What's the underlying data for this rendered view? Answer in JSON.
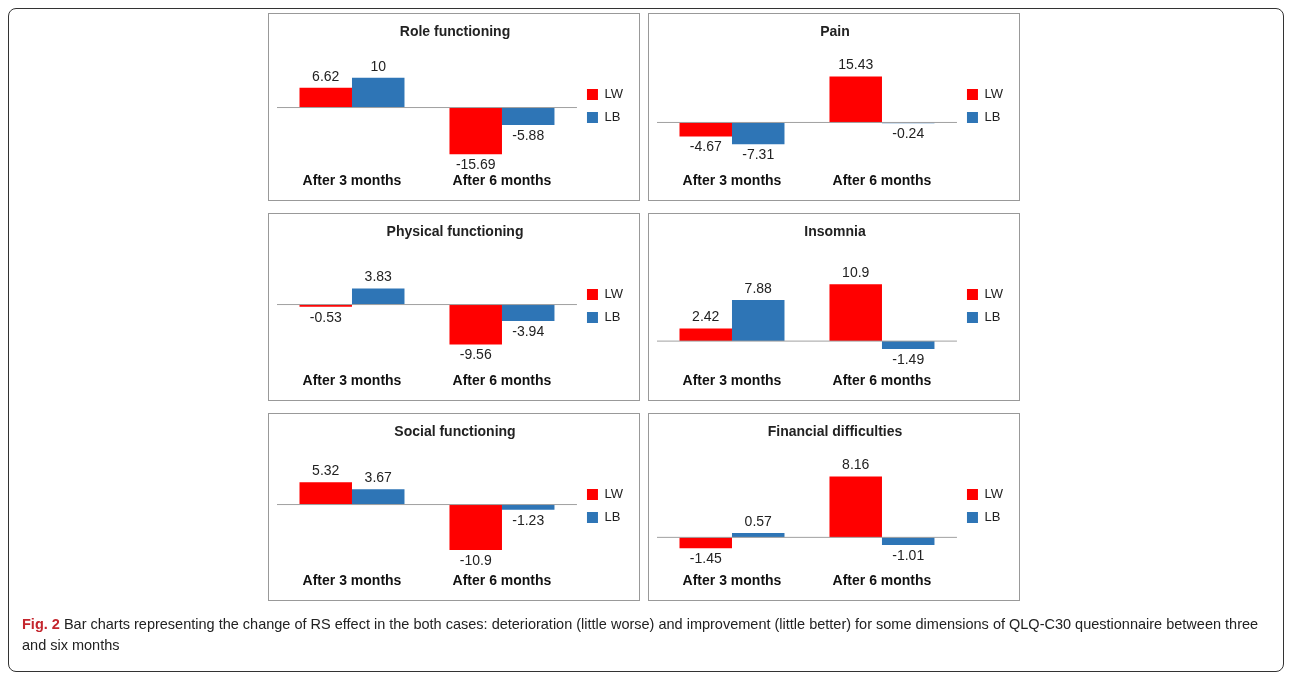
{
  "chart_data": [
    {
      "type": "bar",
      "title": "Role functioning",
      "categories": [
        "After 3 months",
        "After 6 months"
      ],
      "series": [
        {
          "name": "LW",
          "color": "#ff0000",
          "values": [
            6.62,
            -15.69
          ]
        },
        {
          "name": "LB",
          "color": "#2e75b6",
          "values": [
            10,
            -5.88
          ]
        }
      ],
      "data_labels": true,
      "legend": "right",
      "grid": false
    },
    {
      "type": "bar",
      "title": "Pain",
      "categories": [
        "After 3 months",
        "After 6 months"
      ],
      "series": [
        {
          "name": "LW",
          "color": "#ff0000",
          "values": [
            -4.67,
            15.43
          ]
        },
        {
          "name": "LB",
          "color": "#2e75b6",
          "values": [
            -7.31,
            -0.24
          ]
        }
      ],
      "data_labels": true,
      "legend": "right",
      "grid": false
    },
    {
      "type": "bar",
      "title": "Physical functioning",
      "categories": [
        "After 3 months",
        "After 6 months"
      ],
      "series": [
        {
          "name": "LW",
          "color": "#ff0000",
          "values": [
            -0.53,
            -9.56
          ]
        },
        {
          "name": "LB",
          "color": "#2e75b6",
          "values": [
            3.83,
            -3.94
          ]
        }
      ],
      "data_labels": true,
      "legend": "right",
      "grid": false
    },
    {
      "type": "bar",
      "title": "Insomnia",
      "categories": [
        "After 3 months",
        "After 6 months"
      ],
      "series": [
        {
          "name": "LW",
          "color": "#ff0000",
          "values": [
            2.42,
            10.9
          ]
        },
        {
          "name": "LB",
          "color": "#2e75b6",
          "values": [
            7.88,
            -1.49
          ]
        }
      ],
      "data_labels": true,
      "legend": "right",
      "grid": false
    },
    {
      "type": "bar",
      "title": "Social functioning",
      "categories": [
        "After 3 months",
        "After 6 months"
      ],
      "series": [
        {
          "name": "LW",
          "color": "#ff0000",
          "values": [
            5.32,
            -10.9
          ]
        },
        {
          "name": "LB",
          "color": "#2e75b6",
          "values": [
            3.67,
            -1.23
          ]
        }
      ],
      "data_labels": true,
      "legend": "right",
      "grid": false
    },
    {
      "type": "bar",
      "title": "Financial difficulties",
      "categories": [
        "After 3 months",
        "After 6 months"
      ],
      "series": [
        {
          "name": "LW",
          "color": "#ff0000",
          "values": [
            -1.45,
            8.16
          ]
        },
        {
          "name": "LB",
          "color": "#2e75b6",
          "values": [
            0.57,
            -1.01
          ]
        }
      ],
      "data_labels": true,
      "legend": "right",
      "grid": false,
      "annotations": [
        "Fig. 2 Bar charts representing the change of RS effect in the both cases: deterioration (little worse) and improvement (little better) for some dimensions of QLQ-C30 questionnaire between three and six months"
      ]
    }
  ]
}
